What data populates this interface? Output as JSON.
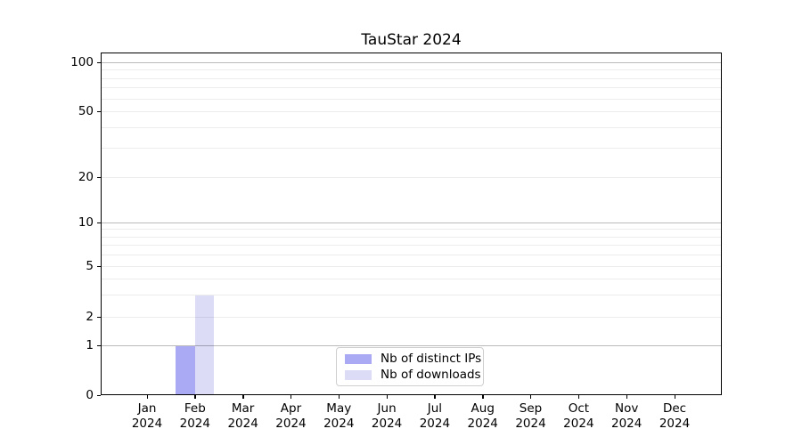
{
  "chart_data": {
    "type": "bar",
    "title": "TauStar 2024",
    "yscale": "symlog",
    "ylim": [
      0,
      115
    ],
    "grid": "both",
    "categories": [
      {
        "month": "Jan",
        "year": "2024"
      },
      {
        "month": "Feb",
        "year": "2024"
      },
      {
        "month": "Mar",
        "year": "2024"
      },
      {
        "month": "Apr",
        "year": "2024"
      },
      {
        "month": "May",
        "year": "2024"
      },
      {
        "month": "Jun",
        "year": "2024"
      },
      {
        "month": "Jul",
        "year": "2024"
      },
      {
        "month": "Aug",
        "year": "2024"
      },
      {
        "month": "Sep",
        "year": "2024"
      },
      {
        "month": "Oct",
        "year": "2024"
      },
      {
        "month": "Nov",
        "year": "2024"
      },
      {
        "month": "Dec",
        "year": "2024"
      }
    ],
    "series": [
      {
        "name": "Nb of distinct IPs",
        "color": "#a9a9f4",
        "values": [
          0,
          1,
          0,
          0,
          0,
          0,
          0,
          0,
          0,
          0,
          0,
          0
        ]
      },
      {
        "name": "Nb of downloads",
        "color": "#dcdcf7",
        "values": [
          0,
          3,
          0,
          0,
          0,
          0,
          0,
          0,
          0,
          0,
          0,
          0
        ]
      }
    ],
    "y_ticks": [
      0,
      1,
      2,
      5,
      10,
      20,
      50,
      100
    ],
    "y_major_gridlines": [
      1,
      10,
      100
    ],
    "y_minor_gridlines": [
      3,
      4,
      6,
      7,
      8,
      9,
      30,
      40,
      60,
      70,
      80,
      90
    ],
    "legend": {
      "position": "lower center"
    },
    "colors": {
      "spine": "#000000",
      "text": "#000000",
      "background": "#ffffff"
    }
  }
}
